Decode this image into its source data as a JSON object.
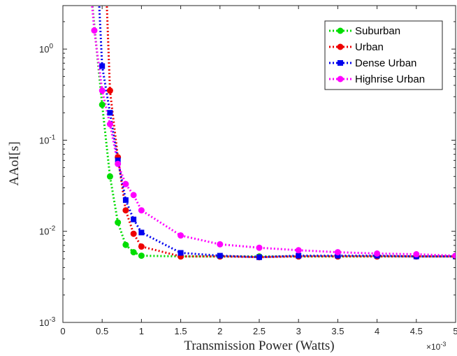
{
  "chart_data": {
    "type": "line",
    "xlabel": "Transmission Power (Watts)",
    "ylabel": "AAoI[s]",
    "x_multiplier_label": "×10",
    "x_multiplier_exp": "-3",
    "xlim": [
      0,
      5
    ],
    "ylim": [
      0.001,
      3
    ],
    "y_scale": "log",
    "x_ticks": [
      "0",
      "0.5",
      "1",
      "1.5",
      "2",
      "2.5",
      "3",
      "3.5",
      "4",
      "4.5",
      "5"
    ],
    "y_ticks": [
      {
        "value": 0.001,
        "base": "10",
        "exp": "-3"
      },
      {
        "value": 0.01,
        "base": "10",
        "exp": "-2"
      },
      {
        "value": 0.1,
        "base": "10",
        "exp": "-1"
      },
      {
        "value": 1,
        "base": "10",
        "exp": "0"
      }
    ],
    "grid": false,
    "legend_position": "top-right",
    "series": [
      {
        "name": "Suburban",
        "color": "#00dd00",
        "marker": "circle",
        "points": [
          [
            0.35,
            5
          ],
          [
            0.5,
            0.245
          ],
          [
            0.6,
            0.04
          ],
          [
            0.7,
            0.0125
          ],
          [
            0.8,
            0.0071
          ],
          [
            0.9,
            0.0059
          ],
          [
            1.0,
            0.0054
          ],
          [
            1.5,
            0.0053
          ],
          [
            2.0,
            0.0053
          ],
          [
            2.5,
            0.0053
          ],
          [
            3.0,
            0.0053
          ],
          [
            3.5,
            0.0053
          ],
          [
            4.0,
            0.0053
          ],
          [
            4.5,
            0.0053
          ],
          [
            5.0,
            0.0053
          ]
        ]
      },
      {
        "name": "Urban",
        "color": "#ee0000",
        "marker": "circle",
        "points": [
          [
            0.55,
            5
          ],
          [
            0.6,
            0.35
          ],
          [
            0.7,
            0.065
          ],
          [
            0.8,
            0.017
          ],
          [
            0.9,
            0.0094
          ],
          [
            1.0,
            0.0068
          ],
          [
            1.5,
            0.0053
          ],
          [
            2.0,
            0.0053
          ],
          [
            2.5,
            0.0052
          ],
          [
            3.0,
            0.0053
          ],
          [
            3.5,
            0.0053
          ],
          [
            4.0,
            0.0053
          ],
          [
            4.5,
            0.0053
          ],
          [
            5.0,
            0.0053
          ]
        ]
      },
      {
        "name": "Dense Urban",
        "color": "#0000ee",
        "marker": "square",
        "points": [
          [
            0.45,
            5
          ],
          [
            0.5,
            0.65
          ],
          [
            0.6,
            0.2
          ],
          [
            0.7,
            0.06
          ],
          [
            0.8,
            0.022
          ],
          [
            0.9,
            0.0135
          ],
          [
            1.0,
            0.0097
          ],
          [
            1.5,
            0.0058
          ],
          [
            2.0,
            0.0054
          ],
          [
            2.5,
            0.0052
          ],
          [
            3.0,
            0.0054
          ],
          [
            3.5,
            0.0054
          ],
          [
            4.0,
            0.0054
          ],
          [
            4.5,
            0.0053
          ],
          [
            5.0,
            0.0053
          ]
        ]
      },
      {
        "name": "Highrise Urban",
        "color": "#ff00ff",
        "marker": "circle",
        "points": [
          [
            0.35,
            5
          ],
          [
            0.4,
            1.6
          ],
          [
            0.5,
            0.35
          ],
          [
            0.6,
            0.15
          ],
          [
            0.7,
            0.055
          ],
          [
            0.8,
            0.033
          ],
          [
            0.9,
            0.025
          ],
          [
            1.0,
            0.017
          ],
          [
            1.5,
            0.009
          ],
          [
            2.0,
            0.0072
          ],
          [
            2.5,
            0.0066
          ],
          [
            3.0,
            0.0062
          ],
          [
            3.5,
            0.0059
          ],
          [
            4.0,
            0.0057
          ],
          [
            4.5,
            0.0056
          ],
          [
            5.0,
            0.0054
          ]
        ]
      }
    ]
  }
}
